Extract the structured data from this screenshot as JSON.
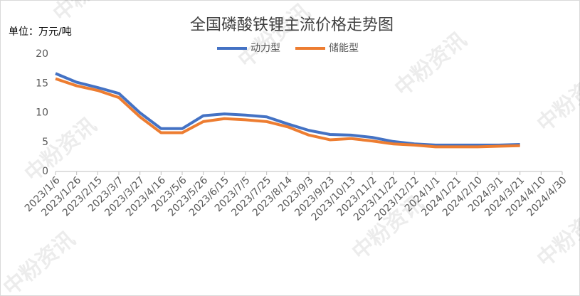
{
  "chart_data": {
    "type": "line",
    "title": "全国磷酸铁锂主流价格走势图",
    "unit_label": "单位：万元/吨",
    "watermark": "中粉资讯",
    "categories": [
      "2023/1/6",
      "2023/1/26",
      "2023/2/15",
      "2023/3/7",
      "2023/3/27",
      "2023/4/16",
      "2023/5/6",
      "2023/5/26",
      "2023/6/15",
      "2023/7/5",
      "2023/7/25",
      "2023/8/14",
      "2023/9/3",
      "2023/9/23",
      "2023/10/13",
      "2023/11/2",
      "2023/11/22",
      "2023/12/12",
      "2024/1/1",
      "2024/1/21",
      "2024/2/10",
      "2024/3/1",
      "2024/3/21",
      "2024/4/10",
      "2024/4/30"
    ],
    "series": [
      {
        "name": "动力型",
        "color": "#4472c4",
        "values": [
          16.7,
          15.2,
          14.3,
          13.3,
          10.0,
          7.3,
          7.3,
          9.5,
          9.8,
          9.6,
          9.3,
          8.1,
          7.0,
          6.3,
          6.2,
          5.8,
          5.1,
          4.7,
          4.5,
          4.5,
          4.5,
          4.5,
          4.6,
          null,
          null
        ]
      },
      {
        "name": "储能型",
        "color": "#ed7d31",
        "values": [
          15.8,
          14.6,
          13.8,
          12.6,
          9.3,
          6.6,
          6.6,
          8.5,
          9.0,
          8.8,
          8.5,
          7.6,
          6.2,
          5.4,
          5.6,
          5.2,
          4.7,
          4.5,
          4.2,
          4.2,
          4.2,
          4.3,
          4.4,
          null,
          null
        ]
      }
    ],
    "ylim": [
      0,
      20
    ],
    "yticks": [
      0,
      5,
      10,
      15,
      20
    ],
    "grid": false
  }
}
